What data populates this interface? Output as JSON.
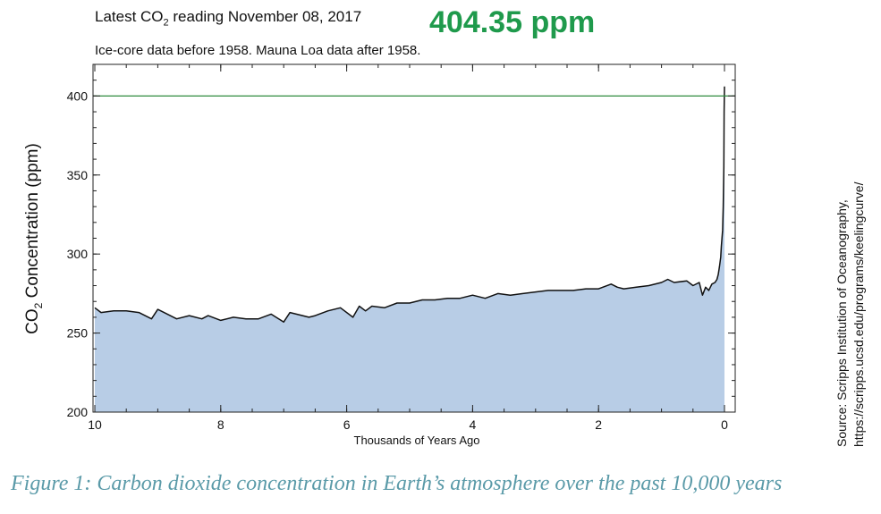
{
  "header": {
    "latest_prefix": "Latest CO",
    "latest_sub": "2",
    "latest_suffix": " reading November 08, 2017",
    "latest_value": "404.35 ppm",
    "subtitle": "Ice-core data before 1958. Mauna Loa data after 1958."
  },
  "caption": "Figure 1: Carbon dioxide concentration in Earth’s atmosphere over the past 10,000 years",
  "source": {
    "line1": "Source: Scripps Institution of Oceanography,",
    "line2": "https://scripps.ucsd.edu/programs/keelingcurve/"
  },
  "colors": {
    "fill": "#b8cde6",
    "line": "#111111",
    "reference_line": "#2e8b3e",
    "highlight": "#1f9a4c",
    "caption": "#5a9aa8"
  },
  "chart_data": {
    "type": "area",
    "title": "",
    "xlabel": "Thousands of Years Ago",
    "ylabel_prefix": "CO",
    "ylabel_sub": "2",
    "ylabel_suffix": " Concentration (ppm)",
    "xlim": [
      10,
      0
    ],
    "ylim": [
      200,
      420
    ],
    "xticks": [
      10,
      8,
      6,
      4,
      2,
      0
    ],
    "yticks": [
      200,
      250,
      300,
      350,
      400
    ],
    "reference_line": 400,
    "x": [
      10,
      9.9,
      9.7,
      9.5,
      9.3,
      9.1,
      9.0,
      8.9,
      8.7,
      8.5,
      8.3,
      8.2,
      8.0,
      7.8,
      7.6,
      7.4,
      7.2,
      7.0,
      6.9,
      6.8,
      6.6,
      6.5,
      6.3,
      6.1,
      5.9,
      5.8,
      5.7,
      5.6,
      5.4,
      5.2,
      5.0,
      4.8,
      4.6,
      4.4,
      4.2,
      4.0,
      3.8,
      3.6,
      3.4,
      3.2,
      3.0,
      2.8,
      2.6,
      2.4,
      2.2,
      2.0,
      1.8,
      1.7,
      1.6,
      1.4,
      1.2,
      1.0,
      0.9,
      0.8,
      0.6,
      0.5,
      0.4,
      0.35,
      0.3,
      0.25,
      0.2,
      0.15,
      0.12,
      0.1,
      0.08,
      0.06,
      0.05,
      0.04,
      0.03,
      0.02,
      0.01,
      0.005,
      0.0
    ],
    "values": [
      266,
      263,
      264,
      264,
      263,
      259,
      265,
      263,
      259,
      261,
      259,
      261,
      258,
      260,
      259,
      259,
      262,
      257,
      263,
      262,
      260,
      261,
      264,
      266,
      260,
      267,
      264,
      267,
      266,
      269,
      269,
      271,
      271,
      272,
      272,
      274,
      272,
      275,
      274,
      275,
      276,
      277,
      277,
      277,
      278,
      278,
      281,
      279,
      278,
      279,
      280,
      282,
      284,
      282,
      283,
      280,
      282,
      274,
      279,
      277,
      281,
      282,
      284,
      287,
      292,
      298,
      305,
      310,
      315,
      330,
      355,
      390,
      406
    ]
  }
}
